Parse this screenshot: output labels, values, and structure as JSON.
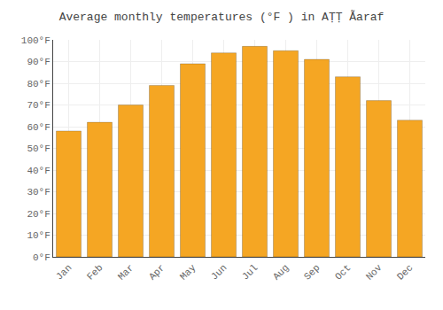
{
  "chart_data": {
    "type": "bar",
    "title": "Average monthly temperatures (°F ) in AṬṬ Ẫaraf",
    "categories": [
      "Jan",
      "Feb",
      "Mar",
      "Apr",
      "May",
      "Jun",
      "Jul",
      "Aug",
      "Sep",
      "Oct",
      "Nov",
      "Dec"
    ],
    "values": [
      58,
      62,
      70,
      79,
      89,
      94,
      97,
      95,
      91,
      83,
      72,
      63
    ],
    "color": "#F5A623",
    "ylim": [
      0,
      100
    ],
    "yticks": [
      {
        "value": 0,
        "label": "0°F"
      },
      {
        "value": 10,
        "label": "10°F"
      },
      {
        "value": 20,
        "label": "20°F"
      },
      {
        "value": 30,
        "label": "30°F"
      },
      {
        "value": 40,
        "label": "40°F"
      },
      {
        "value": 50,
        "label": "50°F"
      },
      {
        "value": 60,
        "label": "60°F"
      },
      {
        "value": 70,
        "label": "70°F"
      },
      {
        "value": 80,
        "label": "80°F"
      },
      {
        "value": 90,
        "label": "90°F"
      },
      {
        "value": 100,
        "label": "100°F"
      }
    ],
    "grid": true
  }
}
